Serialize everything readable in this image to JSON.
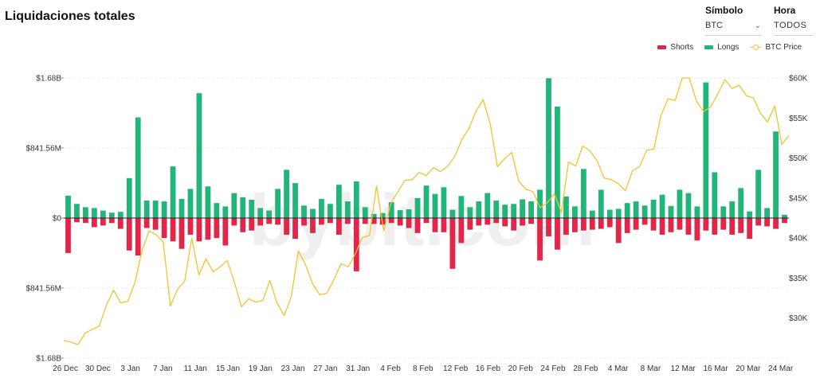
{
  "header": {
    "title": "Liquidaciones totales",
    "symbol_label": "Símbolo",
    "symbol_value": "BTC",
    "time_label": "Hora",
    "time_value": "TODOS"
  },
  "watermark": "bybit.com",
  "colors": {
    "shorts": "#e2264a",
    "longs": "#21b57a",
    "price": "#f2c230"
  },
  "chart_data": {
    "type": "bar",
    "title": "Liquidaciones totales",
    "legend_position": "top-right",
    "legend": [
      "Shorts",
      "Longs",
      "BTC Price"
    ],
    "y_left_ticks": [
      "$1.68B",
      "$841.56M",
      "$0",
      "$841.56M",
      "$1.68B"
    ],
    "y_left_range_millions": [
      -1683,
      1683
    ],
    "y_right_ticks": [
      "$60K",
      "$55K",
      "$50K",
      "$45K",
      "$40K",
      "$35K",
      "$30K"
    ],
    "y_right_range": [
      25000,
      60000
    ],
    "x_tick_labels": [
      "26 Dec",
      "30 Dec",
      "3 Jan",
      "7 Jan",
      "11 Jan",
      "15 Jan",
      "19 Jan",
      "23 Jan",
      "27 Jan",
      "31 Jan",
      "4 Feb",
      "8 Feb",
      "12 Feb",
      "16 Feb",
      "20 Feb",
      "24 Feb",
      "28 Feb",
      "4 Mar",
      "8 Mar",
      "12 Mar",
      "16 Mar",
      "20 Mar",
      "24 Mar"
    ],
    "grid": true,
    "series": [
      {
        "name": "Longs",
        "unit": "millions USD",
        "values": [
          270,
          170,
          130,
          120,
          90,
          65,
          75,
          480,
          1210,
          210,
          210,
          200,
          620,
          230,
          350,
          1500,
          380,
          180,
          140,
          300,
          250,
          220,
          120,
          90,
          350,
          580,
          420,
          150,
          110,
          230,
          170,
          400,
          200,
          440,
          130,
          50,
          60,
          190,
          95,
          105,
          240,
          390,
          290,
          370,
          100,
          265,
          130,
          200,
          300,
          210,
          160,
          170,
          225,
          200,
          340,
          1680,
          1340,
          260,
          140,
          590,
          90,
          340,
          100,
          110,
          180,
          200,
          150,
          220,
          280,
          145,
          340,
          300,
          140,
          1630,
          550,
          140,
          200,
          360,
          80,
          580,
          120,
          1040,
          40
        ]
      },
      {
        "name": "Shorts",
        "unit": "millions USD",
        "values": [
          -420,
          -50,
          -60,
          -110,
          -90,
          -60,
          -130,
          -390,
          -450,
          -120,
          -140,
          -240,
          -280,
          -370,
          -200,
          -280,
          -260,
          -240,
          -330,
          -90,
          -170,
          -150,
          -90,
          -70,
          -80,
          -200,
          -250,
          -90,
          -180,
          -80,
          -60,
          -200,
          -70,
          -640,
          -70,
          -70,
          -80,
          -60,
          -90,
          -120,
          -180,
          -60,
          -170,
          -170,
          -610,
          -300,
          -140,
          -90,
          -80,
          -60,
          -100,
          -150,
          -90,
          -70,
          -510,
          -220,
          -380,
          -200,
          -170,
          -150,
          -140,
          -130,
          -110,
          -300,
          -180,
          -140,
          -80,
          -150,
          -200,
          -170,
          -140,
          -200,
          -270,
          -150,
          -200,
          -140,
          -200,
          -180,
          -250,
          -90,
          -100,
          -130,
          -60
        ]
      },
      {
        "name": "BTC Price",
        "unit": "USD",
        "values": [
          27200,
          27000,
          26700,
          28100,
          28600,
          29000,
          31600,
          33500,
          31900,
          32100,
          34400,
          38400,
          40900,
          40400,
          39500,
          31500,
          33600,
          34600,
          40000,
          35400,
          37400,
          35800,
          36400,
          37200,
          34500,
          31400,
          32400,
          32000,
          32200,
          34700,
          31900,
          30300,
          32700,
          38400,
          36700,
          34300,
          32900,
          33100,
          34800,
          36800,
          36400,
          38000,
          40100,
          40300,
          46500,
          40900,
          44300,
          45800,
          47200,
          47300,
          48200,
          47800,
          48800,
          48300,
          49000,
          50200,
          52300,
          53700,
          55900,
          57300,
          54200,
          48900,
          49900,
          50700,
          47100,
          46100,
          45800,
          43800,
          44400,
          45500,
          43200,
          49500,
          49000,
          51500,
          50900,
          49700,
          47500,
          47300,
          46800,
          45900,
          48400,
          48900,
          51000,
          51100,
          55300,
          57400,
          57200,
          61000,
          61300,
          57100,
          55800,
          56400,
          58000,
          59800,
          58700,
          59100,
          57800,
          57500,
          55600,
          54500,
          56500,
          51700,
          52800
        ]
      }
    ]
  }
}
